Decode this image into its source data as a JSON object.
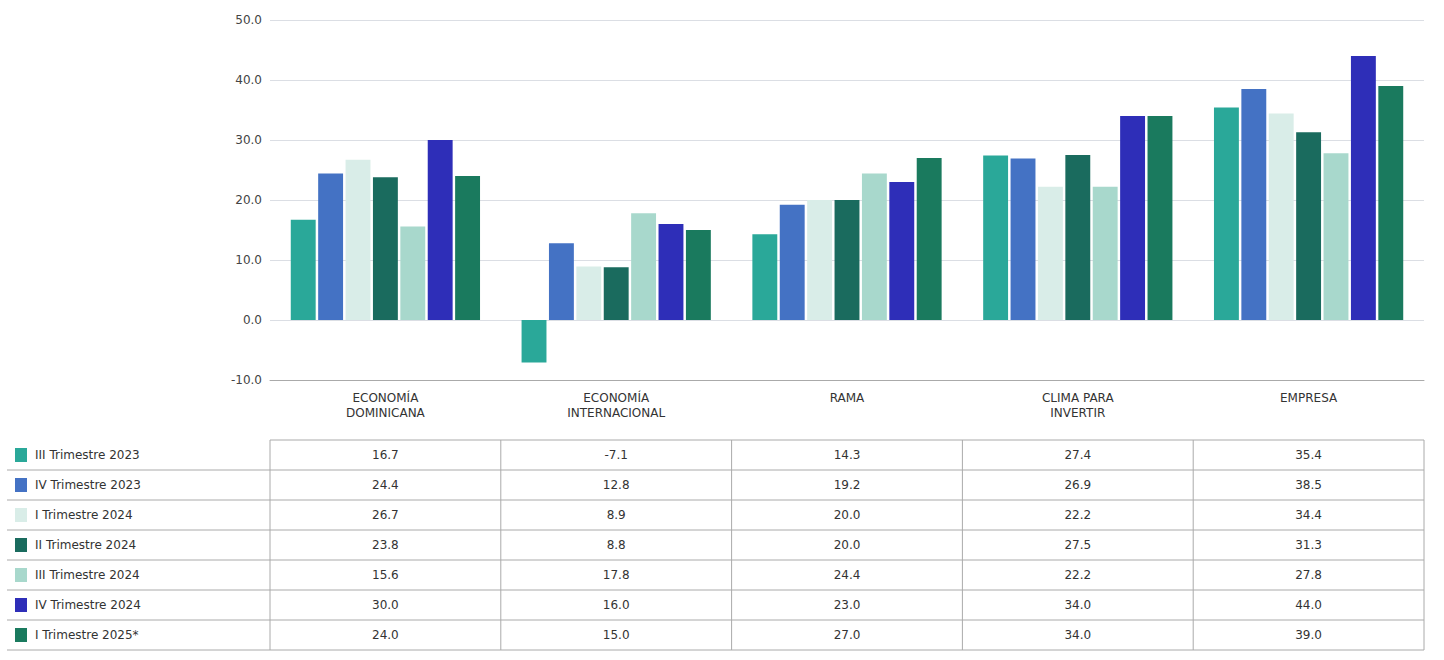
{
  "chart_data": {
    "type": "bar",
    "categories": [
      "ECONOMÍA\nDOMINICANA",
      "ECONOMÍA\nINTERNACIONAL",
      "RAMA",
      "CLIMA PARA\nINVERTIR",
      "EMPRESA"
    ],
    "series": [
      {
        "name": "III Trimestre 2023",
        "color": "#2aa899",
        "values": [
          16.7,
          -7.1,
          14.3,
          27.4,
          35.4
        ],
        "value_labels": [
          "16.7",
          "-7.1",
          "14.3",
          "27.4",
          "35.4"
        ]
      },
      {
        "name": "IV Trimestre 2023",
        "color": "#4472c4",
        "values": [
          24.4,
          12.8,
          19.2,
          26.9,
          38.5
        ],
        "value_labels": [
          "24.4",
          "12.8",
          "19.2",
          "26.9",
          "38.5"
        ]
      },
      {
        "name": "I Trimestre 2024",
        "color": "#d9ede8",
        "values": [
          26.7,
          8.9,
          20.0,
          22.2,
          34.4
        ],
        "value_labels": [
          "26.7",
          "8.9",
          "20.0",
          "22.2",
          "34.4"
        ]
      },
      {
        "name": "II Trimestre 2024",
        "color": "#1a6b5e",
        "values": [
          23.8,
          8.8,
          20.0,
          27.5,
          31.3
        ],
        "value_labels": [
          "23.8",
          "8.8",
          "20.0",
          "27.5",
          "31.3"
        ]
      },
      {
        "name": "III Trimestre 2024",
        "color": "#a8d8cc",
        "values": [
          15.6,
          17.8,
          24.4,
          22.2,
          27.8
        ],
        "value_labels": [
          "15.6",
          "17.8",
          "24.4",
          "22.2",
          "27.8"
        ]
      },
      {
        "name": "IV Trimestre 2024",
        "color": "#2e2eb8",
        "values": [
          30.0,
          16.0,
          23.0,
          34.0,
          44.0
        ],
        "value_labels": [
          "30.0",
          "16.0",
          "23.0",
          "34.0",
          "44.0"
        ]
      },
      {
        "name": "I Trimestre 2025*",
        "color": "#1a7a5e",
        "values": [
          24.0,
          15.0,
          27.0,
          34.0,
          39.0
        ],
        "value_labels": [
          "24.0",
          "15.0",
          "27.0",
          "34.0",
          "39.0"
        ]
      }
    ],
    "ylim": [
      -10.0,
      50.0
    ],
    "yticks": [
      {
        "value": -10,
        "label": "-10.0"
      },
      {
        "value": 0,
        "label": "0.0"
      },
      {
        "value": 10,
        "label": "10.0"
      },
      {
        "value": 20,
        "label": "20.0"
      },
      {
        "value": 30,
        "label": "30.0"
      },
      {
        "value": 40,
        "label": "40.0"
      },
      {
        "value": 50,
        "label": "50.0"
      }
    ],
    "grid": true
  }
}
